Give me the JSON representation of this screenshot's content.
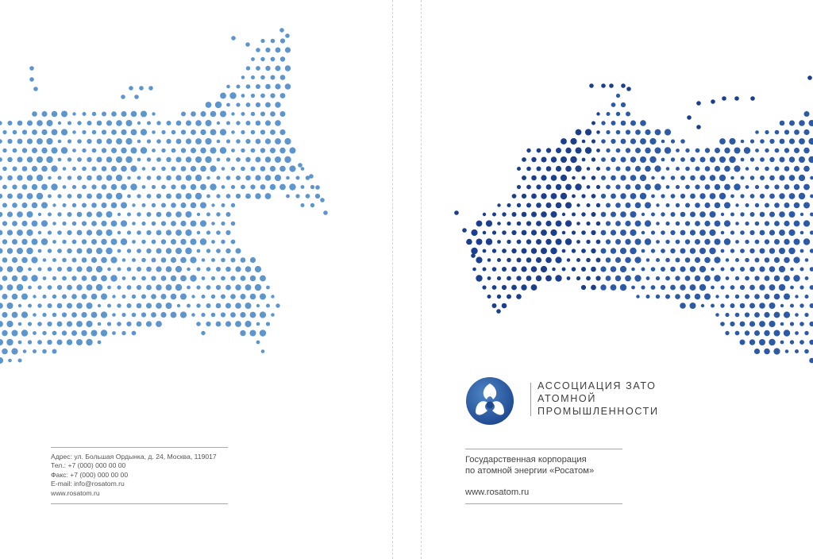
{
  "left_panel": {
    "contacts": [
      "Адрес: ул. Большая Ордынка, д. 24, Москва, 119017",
      "Тел.: +7 (000) 000 00 00",
      "Факс: +7 (000) 000 00 00",
      "E-mail: info@rosatom.ru",
      "www.rosatom.ru"
    ]
  },
  "right_panel": {
    "association": {
      "line1": "АССОЦИАЦИЯ ЗАТО",
      "line2": "АТОМНОЙ",
      "line3": "ПРОМЫШЛЕННОСТИ"
    },
    "corporation": {
      "line1": "Государственная корпорация",
      "line2": "по атомной энергии «Росатом»",
      "website": "www.rosatom.ru"
    }
  },
  "colors": {
    "dot_light": "#5d95cf",
    "dot_dark": "#1b3f8c",
    "logo_blue": "#2f64ad",
    "text": "#444444",
    "rule": "#a8a8a8"
  },
  "icons": {
    "logo": "rosatom-atom-logo-icon"
  }
}
